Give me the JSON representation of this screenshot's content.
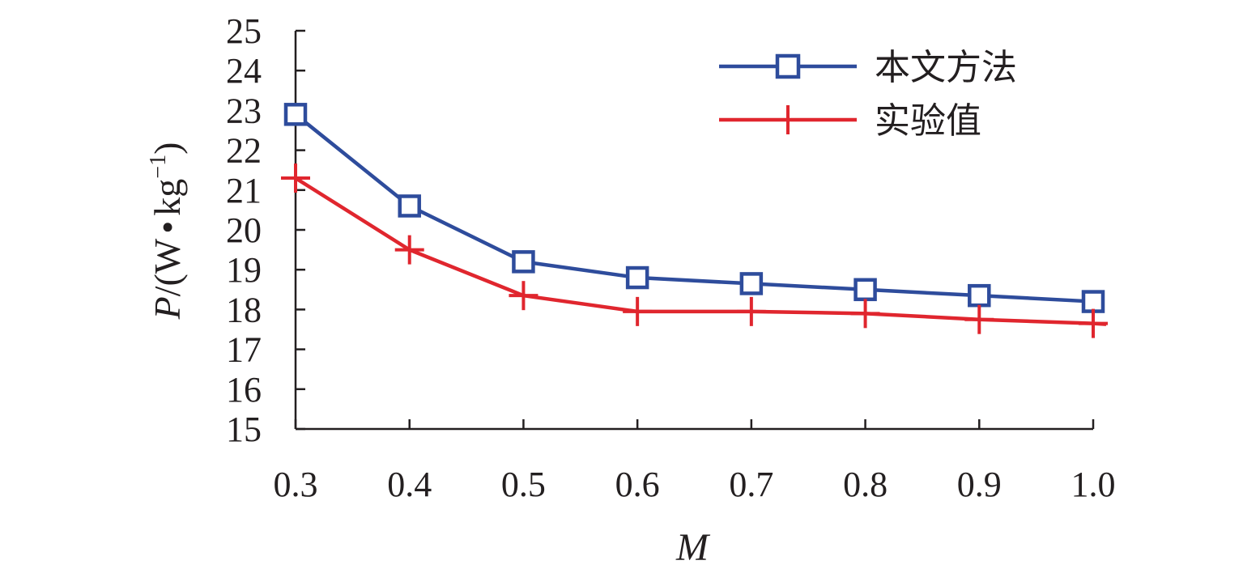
{
  "chart_data": {
    "type": "line",
    "xlabel": "M",
    "ylabel": {
      "prefix": "P",
      "unit_open": "/(W",
      "dot": "•",
      "unit_kg": "kg",
      "sup": "−1",
      "close": ")"
    },
    "x": [
      0.3,
      0.4,
      0.5,
      0.6,
      0.7,
      0.8,
      0.9,
      1.0
    ],
    "x_tick_labels": [
      "0.3",
      "0.4",
      "0.5",
      "0.6",
      "0.7",
      "0.8",
      "0.9",
      "1.0"
    ],
    "ylim": [
      15,
      25
    ],
    "y_ticks": [
      15,
      16,
      17,
      18,
      19,
      20,
      21,
      22,
      23,
      24,
      25
    ],
    "y_tick_labels": [
      "15",
      "16",
      "17",
      "18",
      "19",
      "20",
      "21",
      "22",
      "23",
      "24",
      "25"
    ],
    "grid": false,
    "legend_position": "top-right",
    "series": [
      {
        "name": "本文方法",
        "color": "#2e4c9c",
        "marker": "square",
        "values": [
          22.9,
          20.6,
          19.2,
          18.8,
          18.65,
          18.5,
          18.35,
          18.2
        ]
      },
      {
        "name": "实验值",
        "color": "#e0262e",
        "marker": "plus",
        "values": [
          21.3,
          19.5,
          18.35,
          17.95,
          17.95,
          17.9,
          17.75,
          17.65
        ]
      }
    ]
  }
}
